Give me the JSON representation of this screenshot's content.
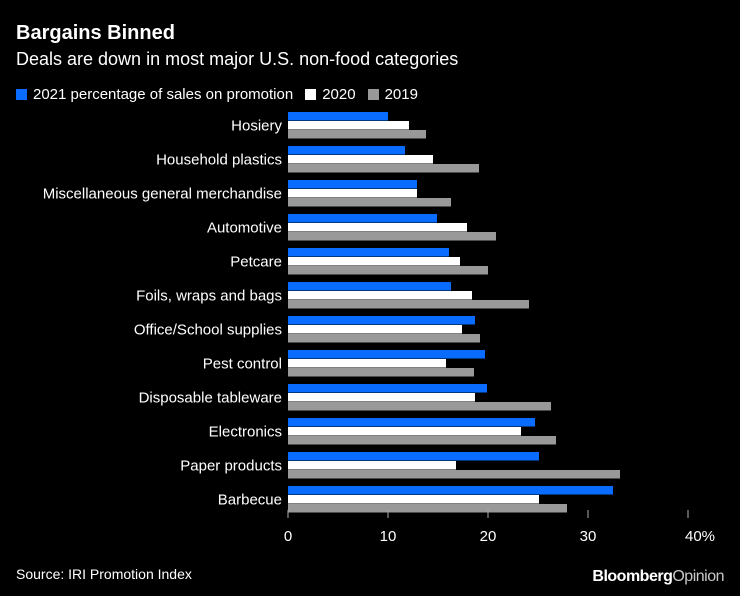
{
  "title": "Bargains Binned",
  "subtitle": "Deals are down in most major U.S. non-food categories",
  "source": "Source: IRI Promotion Index",
  "logo": {
    "brand": "Bloomberg",
    "suffix": "Opinion"
  },
  "colors": {
    "2021": "#0a6cff",
    "2020": "#ffffff",
    "2019": "#999999"
  },
  "chart_data": {
    "type": "bar",
    "orientation": "horizontal",
    "title": "Bargains Binned",
    "subtitle": "Deals are down in most major U.S. non-food categories",
    "categories": [
      "Hosiery",
      "Household plastics",
      "Miscellaneous general merchandise",
      "Automotive",
      "Petcare",
      "Foils, wraps and bags",
      "Office/School supplies",
      "Pest control",
      "Disposable tableware",
      "Electronics",
      "Paper products",
      "Barbecue"
    ],
    "series": [
      {
        "name": "2021 percentage of sales on promotion",
        "key": "2021",
        "values": [
          10.0,
          11.7,
          12.9,
          14.9,
          16.1,
          16.3,
          18.7,
          19.7,
          19.9,
          24.7,
          25.1,
          32.5
        ]
      },
      {
        "name": "2020",
        "key": "2020",
        "values": [
          12.1,
          14.5,
          12.9,
          17.9,
          17.2,
          18.4,
          17.4,
          15.8,
          18.7,
          23.3,
          16.8,
          25.1
        ]
      },
      {
        "name": "2019",
        "key": "2019",
        "values": [
          13.8,
          19.1,
          16.3,
          20.8,
          20.0,
          24.1,
          19.2,
          18.6,
          26.3,
          26.8,
          33.2,
          27.9
        ]
      }
    ],
    "xlim": [
      0,
      40
    ],
    "xticks": [
      0,
      10,
      20,
      30,
      40
    ],
    "xtick_labels": [
      "0",
      "10",
      "20",
      "30",
      "40%"
    ],
    "legend": "top-left",
    "grid": false
  }
}
